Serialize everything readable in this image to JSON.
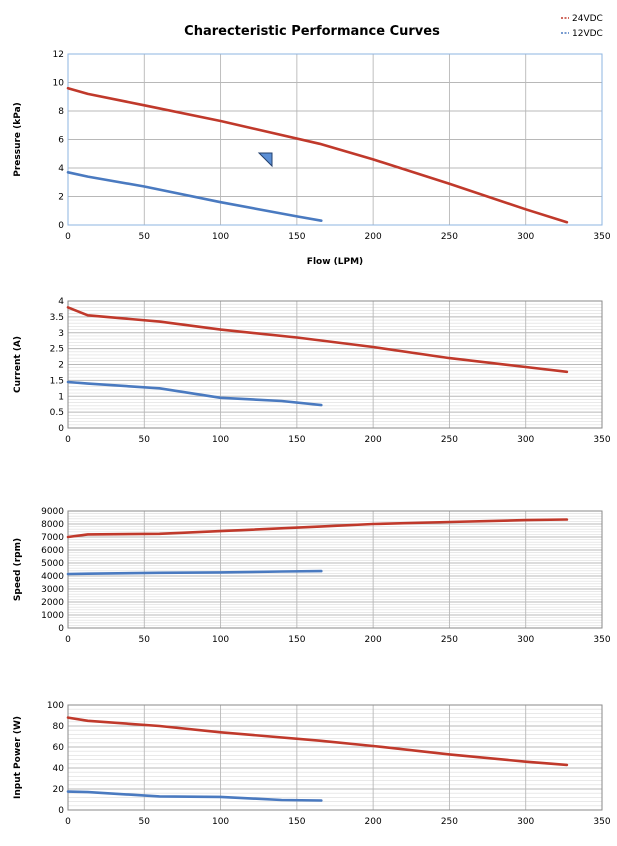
{
  "title": "Charecteristic Performance Curves",
  "colors": {
    "s24": "#c0392b",
    "s12": "#4a7ac0",
    "grid": "#b8b8b8",
    "frame": "#8a8a8a"
  },
  "legend": [
    {
      "label": "24VDC",
      "color": "#c0392b"
    },
    {
      "label": "12VDC",
      "color": "#4a7ac0"
    }
  ],
  "chart_data": [
    {
      "type": "line",
      "xlabel": "Flow (LPM)",
      "ylabel": "Pressure (kPa)",
      "xlim": [
        0,
        350
      ],
      "ylim": [
        0,
        12
      ],
      "xticks": [
        0,
        50,
        100,
        150,
        200,
        250,
        300,
        350
      ],
      "yticks": [
        0,
        2,
        4,
        6,
        8,
        10,
        12
      ],
      "minor_grid": false,
      "series": [
        {
          "name": "24VDC",
          "x": [
            0,
            13,
            50,
            100,
            165,
            200,
            250,
            300,
            327
          ],
          "y": [
            9.6,
            9.2,
            8.4,
            7.3,
            5.7,
            4.6,
            2.9,
            1.1,
            0.2
          ]
        },
        {
          "name": "12VDC",
          "x": [
            0,
            13,
            50,
            100,
            150,
            166
          ],
          "y": [
            3.7,
            3.4,
            2.7,
            1.6,
            0.6,
            0.3
          ]
        }
      ]
    },
    {
      "type": "line",
      "xlabel": "",
      "ylabel": "Current (A)",
      "xlim": [
        0,
        350
      ],
      "ylim": [
        0,
        4
      ],
      "xticks": [
        0,
        50,
        100,
        150,
        200,
        250,
        300,
        350
      ],
      "yticks": [
        0,
        0.5,
        1,
        1.5,
        2,
        2.5,
        3,
        3.5,
        4
      ],
      "minor_grid": true,
      "series": [
        {
          "name": "24VDC",
          "x": [
            0,
            13,
            60,
            100,
            150,
            200,
            250,
            300,
            327
          ],
          "y": [
            3.8,
            3.55,
            3.35,
            3.1,
            2.85,
            2.55,
            2.2,
            1.92,
            1.77
          ]
        },
        {
          "name": "12VDC",
          "x": [
            0,
            13,
            60,
            100,
            140,
            166
          ],
          "y": [
            1.45,
            1.4,
            1.25,
            0.95,
            0.85,
            0.72
          ]
        }
      ]
    },
    {
      "type": "line",
      "xlabel": "",
      "ylabel": "Speed (rpm)",
      "xlim": [
        0,
        350
      ],
      "ylim": [
        0,
        9000
      ],
      "xticks": [
        0,
        50,
        100,
        150,
        200,
        250,
        300,
        350
      ],
      "yticks": [
        0,
        1000,
        2000,
        3000,
        4000,
        5000,
        6000,
        7000,
        8000,
        9000
      ],
      "minor_grid": true,
      "series": [
        {
          "name": "24VDC",
          "x": [
            0,
            13,
            60,
            100,
            165,
            200,
            250,
            300,
            327
          ],
          "y": [
            7000,
            7200,
            7250,
            7450,
            7800,
            8000,
            8150,
            8300,
            8350
          ]
        },
        {
          "name": "12VDC",
          "x": [
            0,
            13,
            60,
            100,
            140,
            166
          ],
          "y": [
            4150,
            4180,
            4250,
            4280,
            4350,
            4380
          ]
        }
      ]
    },
    {
      "type": "line",
      "xlabel": "",
      "ylabel": "Input Power (W)",
      "xlim": [
        0,
        350
      ],
      "ylim": [
        0,
        100
      ],
      "xticks": [
        0,
        50,
        100,
        150,
        200,
        250,
        300,
        350
      ],
      "yticks": [
        0,
        20,
        40,
        60,
        80,
        100
      ],
      "minor_grid": true,
      "series": [
        {
          "name": "24VDC",
          "x": [
            0,
            13,
            60,
            100,
            165,
            200,
            250,
            300,
            327
          ],
          "y": [
            88,
            85,
            80,
            74,
            66,
            61,
            53,
            46,
            43
          ]
        },
        {
          "name": "12VDC",
          "x": [
            0,
            13,
            60,
            100,
            140,
            166
          ],
          "y": [
            17.5,
            17,
            13,
            12.5,
            9.5,
            9
          ]
        }
      ]
    }
  ]
}
